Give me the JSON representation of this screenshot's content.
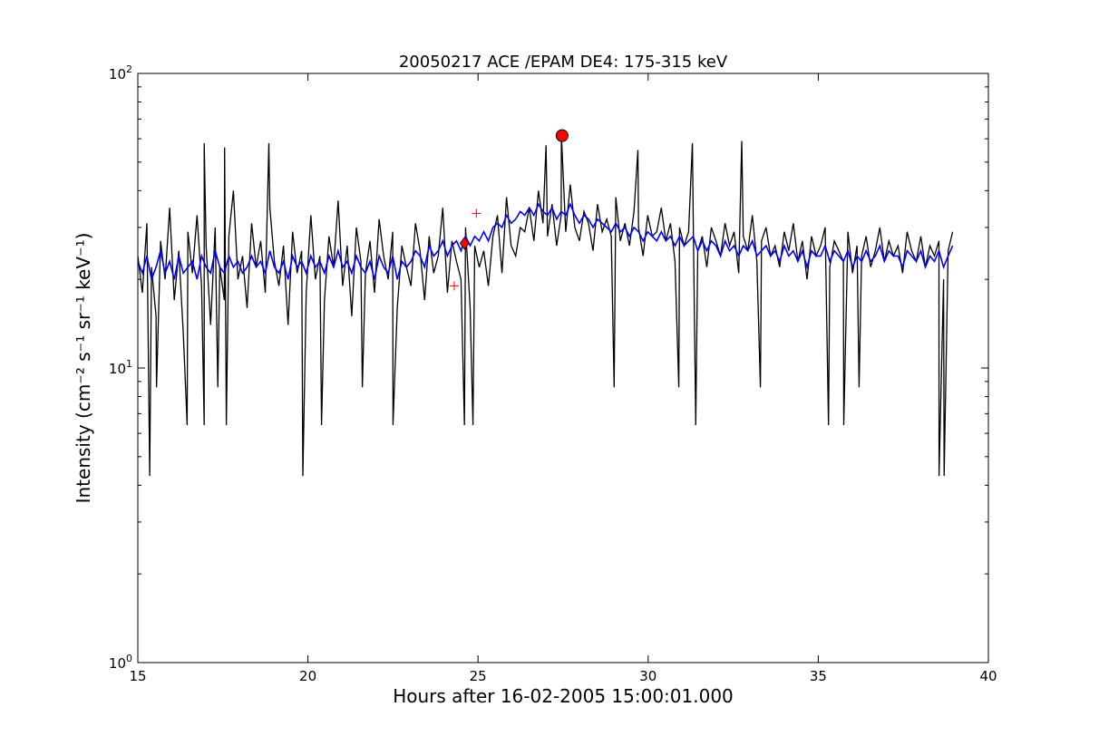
{
  "chart_data": {
    "type": "line",
    "title": "20050217 ACE /EPAM DE4: 175-315 keV",
    "xlabel": "Hours after 16-02-2005 15:00:01.000",
    "ylabel": "Intensity (cm⁻² s⁻¹ sr⁻¹ keV⁻¹)",
    "xlim": [
      15,
      40
    ],
    "ylim": [
      1,
      100
    ],
    "yscale": "log",
    "grid": false,
    "legend": "none",
    "x_ticks": [
      "15",
      "20",
      "25",
      "30",
      "35",
      "40"
    ],
    "y_ticks": [
      {
        "base": "10",
        "exp": "0"
      },
      {
        "base": "10",
        "exp": "1"
      },
      {
        "base": "10",
        "exp": "2"
      }
    ],
    "series": [
      {
        "color": "#000000",
        "x_range": [
          15.0,
          38.95
        ],
        "values": [
          24,
          18,
          31,
          22,
          15,
          27,
          20,
          35,
          17,
          25,
          13,
          29,
          21,
          33,
          19,
          26,
          14,
          30,
          22,
          17,
          28,
          40,
          20,
          24,
          16,
          31,
          22,
          27,
          18,
          35,
          23,
          19,
          26,
          14,
          29,
          21,
          25,
          18,
          33,
          20,
          24,
          17,
          28,
          22,
          37,
          19,
          26,
          15,
          30,
          23,
          21,
          27,
          18,
          32,
          24,
          20,
          29,
          16,
          26,
          22,
          19,
          31,
          25,
          17,
          28,
          21,
          24,
          35,
          18,
          27,
          23,
          20,
          30,
          16,
          26,
          22,
          25,
          19,
          28,
          33,
          21,
          38,
          26,
          24,
          30,
          29,
          35,
          27,
          40,
          31,
          28,
          36,
          26,
          33,
          29,
          42,
          30,
          27,
          34,
          31,
          25,
          36,
          29,
          32,
          28,
          38,
          27,
          31,
          26,
          34,
          30,
          24,
          33,
          28,
          29,
          35,
          27,
          31,
          23,
          30,
          26,
          29,
          32,
          25,
          28,
          22,
          30,
          27,
          24,
          31,
          26,
          29,
          21,
          28,
          25,
          33,
          23,
          27,
          30,
          24,
          26,
          22,
          29,
          25,
          31,
          23,
          27,
          20,
          28,
          24,
          26,
          30,
          22,
          27,
          25,
          23,
          29,
          21,
          26,
          24,
          28,
          22,
          25,
          30,
          23,
          27,
          24,
          26,
          21,
          29,
          25,
          23,
          28,
          22,
          26,
          24,
          27,
          20,
          25,
          29
        ],
        "spikes": [
          {
            "x": 15.35,
            "y": 4.3
          },
          {
            "x": 16.45,
            "y": 6.4
          },
          {
            "x": 16.95,
            "y": 6.4
          },
          {
            "x": 17.6,
            "y": 6.4
          },
          {
            "x": 19.85,
            "y": 4.3
          },
          {
            "x": 20.4,
            "y": 6.4
          },
          {
            "x": 22.5,
            "y": 6.4
          },
          {
            "x": 24.6,
            "y": 6.4
          },
          {
            "x": 24.85,
            "y": 6.4
          },
          {
            "x": 29.0,
            "y": 8.6
          },
          {
            "x": 30.9,
            "y": 8.6
          },
          {
            "x": 31.4,
            "y": 6.4
          },
          {
            "x": 35.3,
            "y": 6.4
          },
          {
            "x": 35.75,
            "y": 6.4
          },
          {
            "x": 38.55,
            "y": 4.3
          },
          {
            "x": 38.7,
            "y": 4.3
          },
          {
            "x": 15.55,
            "y": 8.6
          },
          {
            "x": 17.35,
            "y": 8.6
          },
          {
            "x": 21.6,
            "y": 8.6
          },
          {
            "x": 33.3,
            "y": 8.6
          },
          {
            "x": 36.2,
            "y": 8.6
          },
          {
            "x": 16.95,
            "y": 58
          },
          {
            "x": 18.85,
            "y": 58
          },
          {
            "x": 27.0,
            "y": 57
          },
          {
            "x": 29.7,
            "y": 55
          },
          {
            "x": 31.3,
            "y": 58
          },
          {
            "x": 32.75,
            "y": 59
          },
          {
            "x": 17.55,
            "y": 56
          },
          {
            "x": 27.45,
            "y": 62
          }
        ]
      },
      {
        "color": "#0000ff",
        "x_range": [
          15.0,
          38.95
        ],
        "values": [
          23,
          21,
          24,
          20,
          22,
          25,
          21,
          23,
          20,
          24,
          21,
          22,
          23,
          20,
          24,
          22,
          21,
          25,
          22,
          21,
          24,
          22,
          23,
          21,
          22,
          24,
          22,
          23,
          21,
          25,
          22,
          21,
          23,
          20,
          24,
          22,
          23,
          21,
          24,
          22,
          23,
          21,
          24,
          22,
          25,
          22,
          23,
          21,
          24,
          22,
          21,
          23,
          20,
          24,
          22,
          21,
          24,
          20,
          23,
          22,
          23,
          25,
          24,
          22,
          26,
          24,
          25,
          27,
          24,
          26,
          27,
          25,
          28,
          26,
          28,
          27,
          29,
          27,
          30,
          31,
          30,
          33,
          31,
          32,
          34,
          33,
          35,
          33,
          36,
          34,
          33,
          35,
          32,
          34,
          33,
          36,
          33,
          31,
          33,
          32,
          30,
          32,
          31,
          30,
          29,
          31,
          29,
          30,
          28,
          30,
          29,
          27,
          29,
          28,
          27,
          29,
          27,
          28,
          26,
          28,
          26,
          27,
          28,
          25,
          27,
          25,
          27,
          26,
          24,
          27,
          25,
          26,
          24,
          26,
          25,
          27,
          24,
          25,
          26,
          24,
          25,
          23,
          26,
          24,
          25,
          23,
          25,
          22,
          25,
          24,
          24,
          26,
          23,
          25,
          24,
          23,
          25,
          22,
          24,
          23,
          25,
          23,
          24,
          26,
          23,
          25,
          24,
          24,
          22,
          25,
          24,
          23,
          25,
          22,
          24,
          23,
          25,
          22,
          24,
          26
        ]
      }
    ],
    "markers": [
      {
        "shape": "circle",
        "color": "#ff0000",
        "x": 27.47,
        "y": 61.5
      },
      {
        "shape": "diamond",
        "color": "#ff0000",
        "x": 24.6,
        "y": 26.5
      },
      {
        "shape": "plus",
        "color": "#ff0000",
        "x": 24.95,
        "y": 33.5
      },
      {
        "shape": "plus",
        "color": "#ff0000",
        "x": 24.3,
        "y": 19
      }
    ]
  }
}
